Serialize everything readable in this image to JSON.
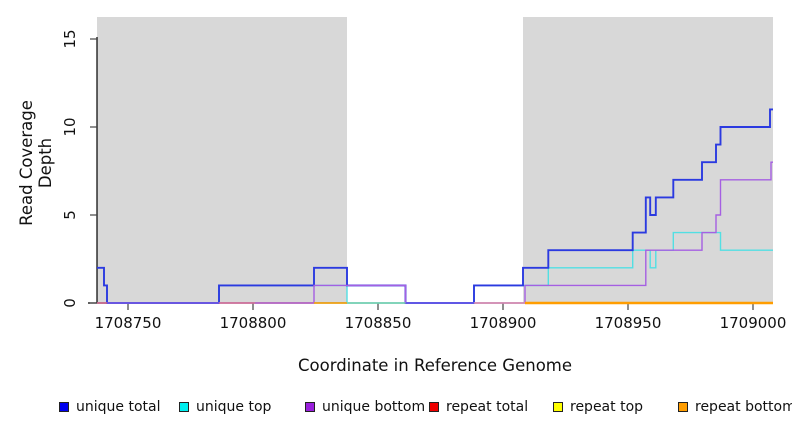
{
  "figure": {
    "background": "#ffffff"
  },
  "y_axis": {
    "title": "Read Coverage Depth",
    "tick_labels": [
      "0",
      "5",
      "10",
      "15"
    ],
    "tick_values": [
      0,
      5,
      10,
      15
    ]
  },
  "x_axis": {
    "title": "Coordinate in Reference Genome",
    "tick_labels": [
      "1708750",
      "1708800",
      "1708850",
      "1708900",
      "1708950",
      "1709000"
    ],
    "tick_values": [
      1708750,
      1708800,
      1708850,
      1708900,
      1708950,
      1709000
    ]
  },
  "legend": [
    {
      "label": "unique total",
      "color": "#0000ee"
    },
    {
      "label": "unique top",
      "color": "#00eeee"
    },
    {
      "label": "unique bottom",
      "color": "#9a20dd"
    },
    {
      "label": "repeat total",
      "color": "#ee0000"
    },
    {
      "label": "repeat top",
      "color": "#ffff00"
    },
    {
      "label": "repeat bottom",
      "color": "#ff9d00"
    }
  ],
  "chart_data": {
    "type": "line",
    "subtype": "step",
    "title": "",
    "xlabel": "Coordinate in Reference Genome",
    "ylabel": "Read Coverage Depth",
    "x_domain": [
      1708737.6,
      1709008
    ],
    "y_domain": [
      0,
      16.25
    ],
    "grid": false,
    "legend_position": "bottom",
    "shaded_regions": [
      {
        "from": 1708737.6,
        "to": 1708837.6,
        "color": "#d8d8d8"
      },
      {
        "from": 1708908.0,
        "to": 1709008.0,
        "color": "#d8d8d8"
      }
    ],
    "series": [
      {
        "name": "unique top",
        "color": "#52dfe3",
        "width": 1.4,
        "points": [
          [
            1708737.6,
            0
          ],
          [
            1708786.4,
            1
          ],
          [
            1708837.6,
            0
          ],
          [
            1708888.4,
            1
          ],
          [
            1708918.1,
            2
          ],
          [
            1708951.9,
            3
          ],
          [
            1708958.9,
            2
          ],
          [
            1708961.1,
            3
          ],
          [
            1708968.1,
            4
          ],
          [
            1708987.0,
            3
          ]
        ]
      },
      {
        "name": "unique total",
        "color": "#2b3ae0",
        "width": 1.9,
        "points": [
          [
            1708737.6,
            2
          ],
          [
            1708740.4,
            1
          ],
          [
            1708741.6,
            0
          ],
          [
            1708786.4,
            1
          ],
          [
            1708824.4,
            2
          ],
          [
            1708837.6,
            1
          ],
          [
            1708861.0,
            0
          ],
          [
            1708888.4,
            1
          ],
          [
            1708908.0,
            2
          ],
          [
            1708918.1,
            3
          ],
          [
            1708951.9,
            4
          ],
          [
            1708957.1,
            6
          ],
          [
            1708958.9,
            5
          ],
          [
            1708961.1,
            6
          ],
          [
            1708968.1,
            7
          ],
          [
            1708979.6,
            8
          ],
          [
            1708985.2,
            9
          ],
          [
            1708987.0,
            10
          ],
          [
            1709006.8,
            11
          ]
        ]
      },
      {
        "name": "unique bottom",
        "color": "#a55fe2",
        "width": 1.4,
        "points": [
          [
            1708737.6,
            0
          ],
          [
            1708824.4,
            1
          ],
          [
            1708861.0,
            0
          ],
          [
            1708908.8,
            1
          ],
          [
            1708957.1,
            3
          ],
          [
            1708979.6,
            4
          ],
          [
            1708985.2,
            5
          ],
          [
            1708987.0,
            7
          ],
          [
            1709007.2,
            8
          ]
        ]
      },
      {
        "name": "repeat total",
        "color": "#ee0000",
        "width": 1.2,
        "points": [
          [
            1708737.6,
            0
          ]
        ]
      },
      {
        "name": "repeat top",
        "color": "#ffff00",
        "width": 1.2,
        "points": [
          [
            1708737.6,
            0
          ]
        ]
      },
      {
        "name": "repeat bottom",
        "color": "#ff9d00",
        "width": 2.2,
        "points": [
          [
            1708737.6,
            0
          ]
        ]
      }
    ],
    "baseline_segments": [
      {
        "from": 1708737.6,
        "to": 1708741.6,
        "color": "#e0606c",
        "width": 1.3
      },
      {
        "from": 1708741.6,
        "to": 1708786.4,
        "color": "#6a5ce0",
        "width": 1.3
      },
      {
        "from": 1708786.4,
        "to": 1708800.8,
        "color": "#e4758a",
        "width": 1.3
      },
      {
        "from": 1708800.8,
        "to": 1708824.4,
        "color": "#bf66c4",
        "width": 1.3
      },
      {
        "from": 1708824.4,
        "to": 1708837.6,
        "color": "#ffa500",
        "width": 1.6
      },
      {
        "from": 1708837.6,
        "to": 1708861.0,
        "color": "#7fd6ad",
        "width": 1.3
      },
      {
        "from": 1708861.0,
        "to": 1708888.4,
        "color": "#5b5ee8",
        "width": 1.3
      },
      {
        "from": 1708888.4,
        "to": 1708908.8,
        "color": "#e898aa",
        "width": 1.3
      },
      {
        "from": 1708908.8,
        "to": 1709008.0,
        "color": "#ff9d00",
        "width": 2.4
      }
    ]
  }
}
